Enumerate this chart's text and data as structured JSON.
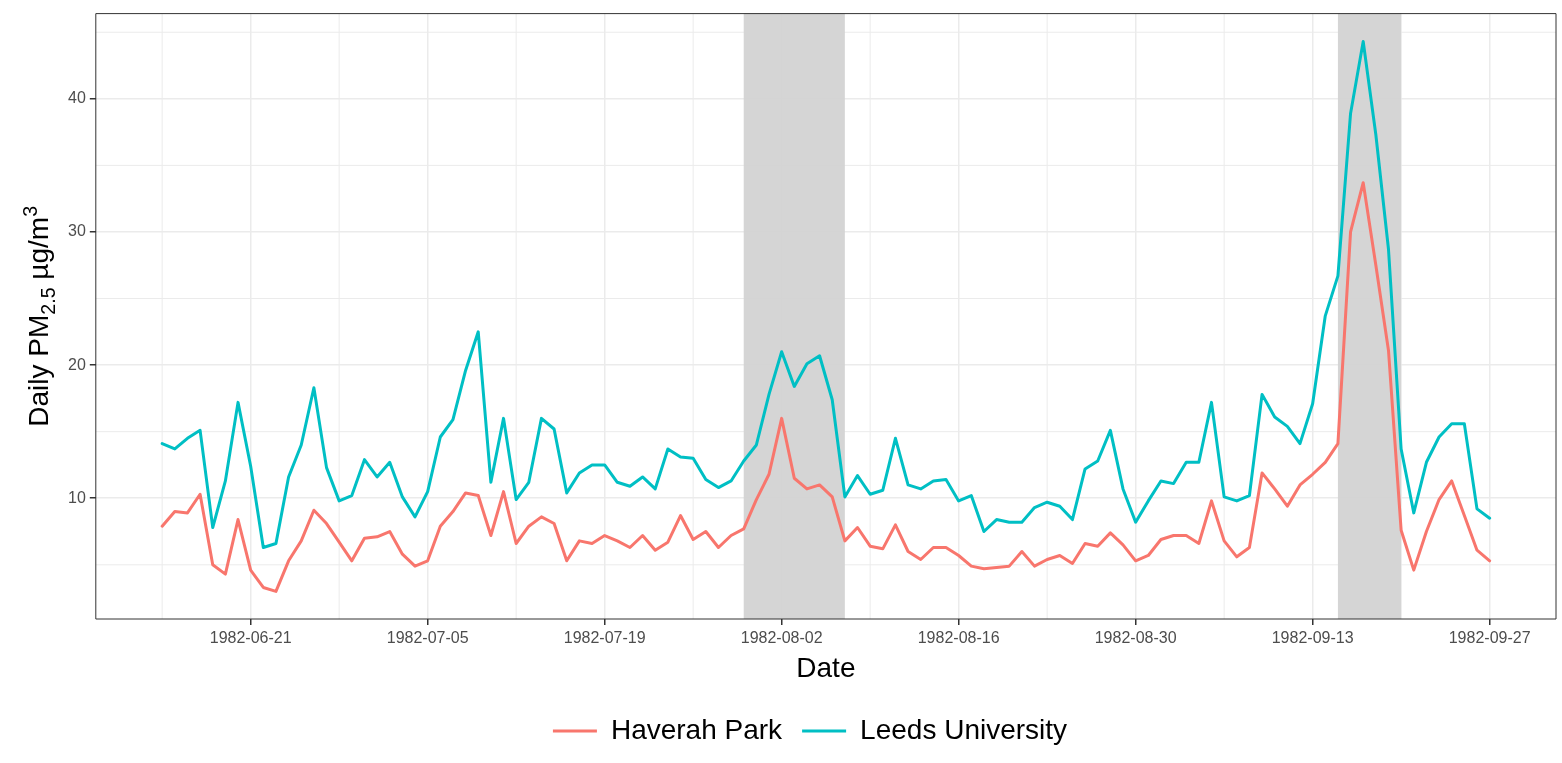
{
  "chart_data": {
    "type": "line",
    "xlabel": "Date",
    "ylabel": "Daily PM$_{2.5}$ µg/m$^{3}$",
    "x": [
      "1982-06-14",
      "1982-06-15",
      "1982-06-16",
      "1982-06-17",
      "1982-06-18",
      "1982-06-19",
      "1982-06-20",
      "1982-06-21",
      "1982-06-22",
      "1982-06-23",
      "1982-06-24",
      "1982-06-25",
      "1982-06-26",
      "1982-06-27",
      "1982-06-28",
      "1982-06-29",
      "1982-06-30",
      "1982-07-01",
      "1982-07-02",
      "1982-07-03",
      "1982-07-04",
      "1982-07-05",
      "1982-07-06",
      "1982-07-07",
      "1982-07-08",
      "1982-07-09",
      "1982-07-10",
      "1982-07-11",
      "1982-07-12",
      "1982-07-13",
      "1982-07-14",
      "1982-07-15",
      "1982-07-16",
      "1982-07-17",
      "1982-07-18",
      "1982-07-19",
      "1982-07-20",
      "1982-07-21",
      "1982-07-22",
      "1982-07-23",
      "1982-07-24",
      "1982-07-25",
      "1982-07-26",
      "1982-07-27",
      "1982-07-28",
      "1982-07-29",
      "1982-07-30",
      "1982-07-31",
      "1982-08-01",
      "1982-08-02",
      "1982-08-03",
      "1982-08-04",
      "1982-08-05",
      "1982-08-06",
      "1982-08-07",
      "1982-08-08",
      "1982-08-09",
      "1982-08-10",
      "1982-08-11",
      "1982-08-12",
      "1982-08-13",
      "1982-08-14",
      "1982-08-15",
      "1982-08-16",
      "1982-08-17",
      "1982-08-18",
      "1982-08-19",
      "1982-08-20",
      "1982-08-21",
      "1982-08-22",
      "1982-08-23",
      "1982-08-24",
      "1982-08-25",
      "1982-08-26",
      "1982-08-27",
      "1982-08-28",
      "1982-08-29",
      "1982-08-30",
      "1982-08-31",
      "1982-09-01",
      "1982-09-02",
      "1982-09-03",
      "1982-09-04",
      "1982-09-05",
      "1982-09-06",
      "1982-09-07",
      "1982-09-08",
      "1982-09-09",
      "1982-09-10",
      "1982-09-11",
      "1982-09-12",
      "1982-09-13",
      "1982-09-14",
      "1982-09-15",
      "1982-09-16",
      "1982-09-17",
      "1982-09-18",
      "1982-09-19",
      "1982-09-20",
      "1982-09-21",
      "1982-09-22",
      "1982-09-23",
      "1982-09-24",
      "1982-09-25",
      "1982-09-26",
      "1982-09-27"
    ],
    "series": [
      {
        "name": "Haverah Park",
        "color": "#f8766d",
        "values": [
          7.9,
          9.0,
          8.9,
          10.3,
          5.0,
          4.3,
          8.4,
          4.6,
          3.3,
          3.0,
          5.3,
          6.8,
          9.1,
          8.1,
          6.7,
          5.3,
          7.0,
          7.1,
          7.5,
          5.8,
          4.9,
          5.3,
          7.9,
          9.0,
          10.4,
          10.2,
          7.2,
          10.5,
          6.6,
          7.9,
          8.6,
          8.1,
          5.3,
          6.8,
          6.6,
          7.2,
          6.8,
          6.3,
          7.2,
          6.1,
          6.7,
          8.7,
          6.9,
          7.5,
          6.3,
          7.2,
          7.7,
          9.9,
          11.8,
          16.0,
          11.5,
          10.7,
          11.0,
          10.1,
          6.8,
          7.8,
          6.4,
          6.2,
          8.0,
          6.0,
          5.4,
          6.3,
          6.3,
          5.7,
          4.9,
          4.7,
          4.8,
          4.9,
          6.0,
          4.9,
          5.4,
          5.7,
          5.1,
          6.6,
          6.4,
          7.4,
          6.5,
          5.3,
          5.7,
          6.9,
          7.2,
          7.2,
          6.6,
          9.8,
          6.8,
          5.6,
          6.3,
          11.9,
          10.7,
          9.4,
          11.0,
          11.8,
          12.7,
          14.1,
          30.0,
          33.7,
          27.5,
          21.1,
          7.6,
          4.6,
          7.5,
          9.9,
          11.3,
          8.7,
          6.1,
          5.3
        ]
      },
      {
        "name": "Leeds University",
        "color": "#00bfc4",
        "values": [
          14.1,
          13.7,
          14.5,
          15.1,
          7.8,
          11.3,
          17.2,
          12.4,
          6.3,
          6.6,
          11.6,
          14.0,
          18.3,
          12.3,
          9.8,
          10.2,
          12.9,
          11.6,
          12.7,
          10.1,
          8.6,
          10.5,
          14.6,
          15.9,
          19.6,
          22.5,
          11.2,
          16.0,
          9.9,
          11.2,
          16.0,
          15.2,
          10.4,
          11.9,
          12.5,
          12.5,
          11.2,
          10.9,
          11.6,
          10.7,
          13.7,
          13.1,
          13.0,
          11.4,
          10.8,
          11.3,
          12.8,
          14.0,
          17.8,
          21.0,
          18.4,
          20.1,
          20.7,
          17.4,
          10.1,
          11.7,
          10.3,
          10.6,
          14.5,
          11.0,
          10.7,
          11.3,
          11.4,
          9.8,
          10.2,
          7.5,
          8.4,
          8.2,
          8.2,
          9.3,
          9.7,
          9.4,
          8.4,
          12.2,
          12.8,
          15.1,
          10.7,
          8.2,
          9.8,
          11.3,
          11.1,
          12.7,
          12.7,
          17.2,
          10.1,
          9.8,
          10.2,
          17.8,
          16.1,
          15.4,
          14.1,
          17.1,
          23.7,
          26.7,
          38.9,
          44.3,
          37.3,
          28.7,
          13.7,
          8.9,
          12.7,
          14.6,
          15.6,
          15.6,
          9.2,
          8.5
        ]
      }
    ],
    "xlim": [
      "1982-06-08T18:00",
      "1982-10-02T06:00"
    ],
    "xticks": [
      "1982-06-21",
      "1982-07-05",
      "1982-07-19",
      "1982-08-02",
      "1982-08-16",
      "1982-08-30",
      "1982-09-13",
      "1982-09-27"
    ],
    "ylim": [
      0.93,
      46.4
    ],
    "yticks": [
      10,
      20,
      30,
      40
    ],
    "bands": [
      {
        "axis": "x",
        "from": "1982-07-30",
        "to": "1982-08-07",
        "color": "#d3d3d3"
      },
      {
        "axis": "x",
        "from": "1982-09-15",
        "to": "1982-09-20",
        "color": "#d3d3d3"
      }
    ],
    "grid": true,
    "legend": "bottom",
    "marker": "none",
    "line_style": "solid"
  }
}
